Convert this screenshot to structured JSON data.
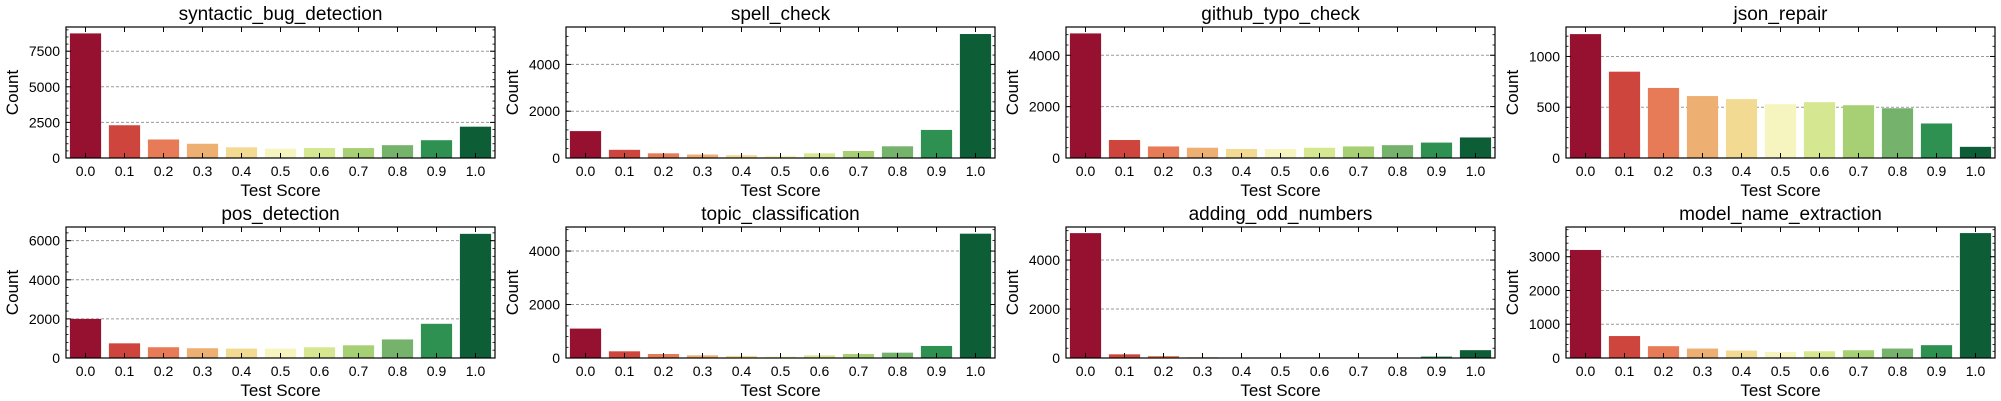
{
  "colors": [
    "#95112f",
    "#cd453d",
    "#e77b57",
    "#edb072",
    "#f3da92",
    "#f6f5bf",
    "#d6e792",
    "#a7d074",
    "#75b26c",
    "#2f9151",
    "#0d5e37"
  ],
  "chart_data": [
    {
      "type": "bar",
      "title": "syntactic_bug_detection",
      "xlabel": "Test Score",
      "ylabel": "Count",
      "categories": [
        "0.0",
        "0.1",
        "0.2",
        "0.3",
        "0.4",
        "0.5",
        "0.6",
        "0.7",
        "0.8",
        "0.9",
        "1.0"
      ],
      "values": [
        8750,
        2300,
        1300,
        1000,
        750,
        650,
        700,
        700,
        900,
        1250,
        2200
      ],
      "ylim": [
        0,
        9200
      ],
      "yticks": [
        0,
        2500,
        5000,
        7500
      ],
      "ytick_labels": [
        "0",
        "2500",
        "5000",
        "7500"
      ],
      "grid": true
    },
    {
      "type": "bar",
      "title": "spell_check",
      "xlabel": "Test Score",
      "ylabel": "Count",
      "categories": [
        "0.0",
        "0.1",
        "0.2",
        "0.3",
        "0.4",
        "0.5",
        "0.6",
        "0.7",
        "0.8",
        "0.9",
        "1.0"
      ],
      "values": [
        1150,
        350,
        200,
        150,
        120,
        100,
        200,
        300,
        500,
        1200,
        5300
      ],
      "ylim": [
        0,
        5600
      ],
      "yticks": [
        0,
        2000,
        4000
      ],
      "ytick_labels": [
        "0",
        "2000",
        "4000"
      ],
      "grid": true
    },
    {
      "type": "bar",
      "title": "github_typo_check",
      "xlabel": "Test Score",
      "ylabel": "Count",
      "categories": [
        "0.0",
        "0.1",
        "0.2",
        "0.3",
        "0.4",
        "0.5",
        "0.6",
        "0.7",
        "0.8",
        "0.9",
        "1.0"
      ],
      "values": [
        4850,
        700,
        450,
        400,
        350,
        350,
        400,
        450,
        500,
        600,
        800
      ],
      "ylim": [
        0,
        5100
      ],
      "yticks": [
        0,
        2000,
        4000
      ],
      "ytick_labels": [
        "0",
        "2000",
        "4000"
      ],
      "grid": true
    },
    {
      "type": "bar",
      "title": "json_repair",
      "xlabel": "Test Score",
      "ylabel": "Count",
      "categories": [
        "0.0",
        "0.1",
        "0.2",
        "0.3",
        "0.4",
        "0.5",
        "0.6",
        "0.7",
        "0.8",
        "0.9",
        "1.0"
      ],
      "values": [
        1220,
        850,
        690,
        610,
        580,
        530,
        550,
        520,
        490,
        340,
        110
      ],
      "ylim": [
        0,
        1290
      ],
      "yticks": [
        0,
        500,
        1000
      ],
      "ytick_labels": [
        "0",
        "500",
        "1000"
      ],
      "grid": true
    },
    {
      "type": "bar",
      "title": "pos_detection",
      "xlabel": "Test Score",
      "ylabel": "Count",
      "categories": [
        "0.0",
        "0.1",
        "0.2",
        "0.3",
        "0.4",
        "0.5",
        "0.6",
        "0.7",
        "0.8",
        "0.9",
        "1.0"
      ],
      "values": [
        2000,
        750,
        550,
        500,
        480,
        480,
        550,
        650,
        950,
        1750,
        6350
      ],
      "ylim": [
        0,
        6700
      ],
      "yticks": [
        0,
        2000,
        4000,
        6000
      ],
      "ytick_labels": [
        "0",
        "2000",
        "4000",
        "6000"
      ],
      "grid": true
    },
    {
      "type": "bar",
      "title": "topic_classification",
      "xlabel": "Test Score",
      "ylabel": "Count",
      "categories": [
        "0.0",
        "0.1",
        "0.2",
        "0.3",
        "0.4",
        "0.5",
        "0.6",
        "0.7",
        "0.8",
        "0.9",
        "1.0"
      ],
      "values": [
        1100,
        250,
        150,
        100,
        80,
        60,
        100,
        150,
        200,
        450,
        4650
      ],
      "ylim": [
        0,
        4900
      ],
      "yticks": [
        0,
        2000,
        4000
      ],
      "ytick_labels": [
        "0",
        "2000",
        "4000"
      ],
      "grid": true
    },
    {
      "type": "bar",
      "title": "adding_odd_numbers",
      "xlabel": "Test Score",
      "ylabel": "Count",
      "categories": [
        "0.0",
        "0.1",
        "0.2",
        "0.3",
        "0.4",
        "0.5",
        "0.6",
        "0.7",
        "0.8",
        "0.9",
        "1.0"
      ],
      "values": [
        5100,
        150,
        80,
        30,
        20,
        15,
        10,
        10,
        15,
        60,
        320
      ],
      "ylim": [
        0,
        5350
      ],
      "yticks": [
        0,
        2000,
        4000
      ],
      "ytick_labels": [
        "0",
        "2000",
        "4000"
      ],
      "grid": true
    },
    {
      "type": "bar",
      "title": "model_name_extraction",
      "xlabel": "Test Score",
      "ylabel": "Count",
      "categories": [
        "0.0",
        "0.1",
        "0.2",
        "0.3",
        "0.4",
        "0.5",
        "0.6",
        "0.7",
        "0.8",
        "0.9",
        "1.0"
      ],
      "values": [
        3200,
        650,
        350,
        280,
        220,
        180,
        200,
        230,
        280,
        380,
        3700
      ],
      "ylim": [
        0,
        3880
      ],
      "yticks": [
        0,
        1000,
        2000,
        3000
      ],
      "ytick_labels": [
        "0",
        "1000",
        "2000",
        "3000"
      ],
      "grid": true
    }
  ]
}
